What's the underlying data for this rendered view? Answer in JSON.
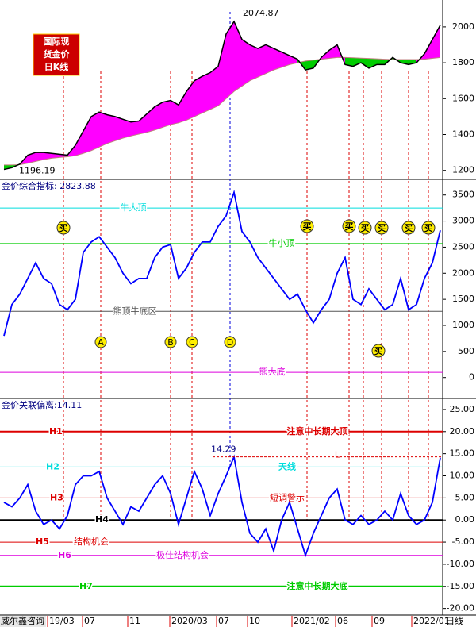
{
  "logo": [
    "国际现",
    "货金价",
    "日K线"
  ],
  "source": "威尔鑫咨询",
  "x_axis_labels": [
    "19/03",
    "07",
    "11",
    "2020/03",
    "07",
    "10",
    "2021/02",
    "06",
    "09",
    "2022/01"
  ],
  "period": "日线",
  "chart_data": [
    {
      "type": "price",
      "series": [
        {
          "color": "#000000",
          "values": [
            1205,
            1215,
            1235,
            1285,
            1300,
            1300,
            1295,
            1290,
            1285,
            1340,
            1420,
            1500,
            1525,
            1510,
            1500,
            1485,
            1470,
            1475,
            1515,
            1555,
            1580,
            1590,
            1565,
            1640,
            1700,
            1725,
            1745,
            1780,
            1960,
            2030,
            1930,
            1900,
            1880,
            1900,
            1880,
            1860,
            1840,
            1820,
            1760,
            1770,
            1830,
            1870,
            1900,
            1790,
            1780,
            1800,
            1770,
            1790,
            1790,
            1830,
            1800,
            1790,
            1800,
            1850,
            1930,
            2010
          ]
        },
        {
          "color": "#c08080",
          "values": [
            1230,
            1230,
            1232,
            1240,
            1250,
            1260,
            1268,
            1272,
            1276,
            1282,
            1295,
            1310,
            1330,
            1350,
            1365,
            1380,
            1392,
            1402,
            1412,
            1425,
            1440,
            1455,
            1465,
            1480,
            1500,
            1520,
            1540,
            1560,
            1600,
            1640,
            1670,
            1700,
            1720,
            1740,
            1760,
            1775,
            1790,
            1800,
            1810,
            1815,
            1820,
            1825,
            1830,
            1830,
            1828,
            1826,
            1824,
            1822,
            1820,
            1818,
            1818,
            1818,
            1818,
            1820,
            1825,
            1830
          ]
        }
      ],
      "fill_above": "#ff00ff",
      "fill_below": "#00cc00",
      "annotations": [
        2074.87,
        1196.19
      ],
      "ylim": [
        1150,
        2150
      ],
      "yticks": [
        1200,
        1400,
        1600,
        1800,
        2000
      ]
    },
    {
      "type": "line",
      "title": "金价综合指标: 2823.88",
      "color": "#0000ff",
      "values": [
        800,
        1400,
        1600,
        1900,
        2200,
        1900,
        1800,
        1400,
        1300,
        1500,
        2400,
        2600,
        2700,
        2500,
        2300,
        2000,
        1800,
        1900,
        1900,
        2300,
        2500,
        2550,
        1900,
        2100,
        2400,
        2600,
        2600,
        2900,
        3100,
        3550,
        2800,
        2600,
        2300,
        2100,
        1900,
        1700,
        1500,
        1600,
        1300,
        1050,
        1300,
        1500,
        2000,
        2300,
        1500,
        1400,
        1700,
        1500,
        1300,
        1400,
        1900,
        1300,
        1400,
        1900,
        2200,
        2823.88
      ],
      "reference_lines": [
        {
          "value": 3250,
          "label": "牛大顶",
          "color": "#00dddd"
        },
        {
          "value": 2570,
          "label": "牛小顶",
          "color": "#00cc00"
        },
        {
          "value": 1270,
          "label": "熊顶牛底区",
          "color": "#555555"
        },
        {
          "value": 100,
          "label": "熊大底",
          "color": "#dd00dd"
        }
      ],
      "signals": [
        "买",
        "买",
        "买",
        "买",
        "买",
        "买",
        "买",
        "买"
      ],
      "wave_labels": [
        "A",
        "B",
        "C",
        "D"
      ],
      "ylim": [
        -400,
        3800
      ],
      "yticks": [
        0,
        500,
        1000,
        1500,
        2000,
        2500,
        3000,
        3500
      ]
    },
    {
      "type": "line",
      "title": "金价关联偏离:14.11",
      "color": "#0000ff",
      "values": [
        4,
        3,
        5,
        8,
        2,
        -1,
        0,
        -2,
        1,
        8,
        10,
        10,
        11,
        5,
        2,
        -1,
        3,
        2,
        5,
        8,
        10,
        6,
        -1,
        5,
        11,
        7,
        1,
        6,
        10,
        14.29,
        4,
        -3,
        -5,
        -2,
        -7,
        0,
        4,
        -2,
        -8,
        -3,
        1,
        5,
        7,
        0,
        -1,
        1,
        -1,
        0,
        2,
        0,
        6,
        1,
        -1,
        0,
        4,
        14.11
      ],
      "reference_lines": [
        {
          "name": "H1",
          "value": 20,
          "label": "注意中长期大顶",
          "color": "#dd0000"
        },
        {
          "name": "H2",
          "value": 12,
          "label": "天线",
          "color": "#00dddd"
        },
        {
          "name": "H3",
          "value": 5,
          "label": "短调警示",
          "color": "#dd0000"
        },
        {
          "name": "H4",
          "value": 0,
          "color": "#000000"
        },
        {
          "name": "H5",
          "value": -5,
          "label": "结构机会",
          "color": "#dd0000"
        },
        {
          "name": "H6",
          "value": -8,
          "label": "极佳结构机会",
          "color": "#dd00dd"
        },
        {
          "name": "H7",
          "value": -15,
          "label": "注意中长期大底",
          "color": "#00cc00"
        }
      ],
      "annotations": [
        14.29
      ],
      "marker": "L",
      "ylim": [
        -21.5,
        27.5
      ],
      "yticks": [
        {
          "value": -20,
          "label": "-20.00"
        },
        {
          "value": -15,
          "label": "-15.00"
        },
        {
          "value": -10,
          "label": "-10.00"
        },
        {
          "value": -5,
          "label": "-5.00"
        },
        {
          "value": 0,
          "label": "0.00"
        },
        {
          "value": 5,
          "label": "5.00"
        },
        {
          "value": 10,
          "label": "10.00"
        },
        {
          "value": 15,
          "label": "15.00"
        },
        {
          "value": 20,
          "label": "20.00"
        },
        {
          "value": 25,
          "label": "25.00"
        }
      ]
    }
  ]
}
